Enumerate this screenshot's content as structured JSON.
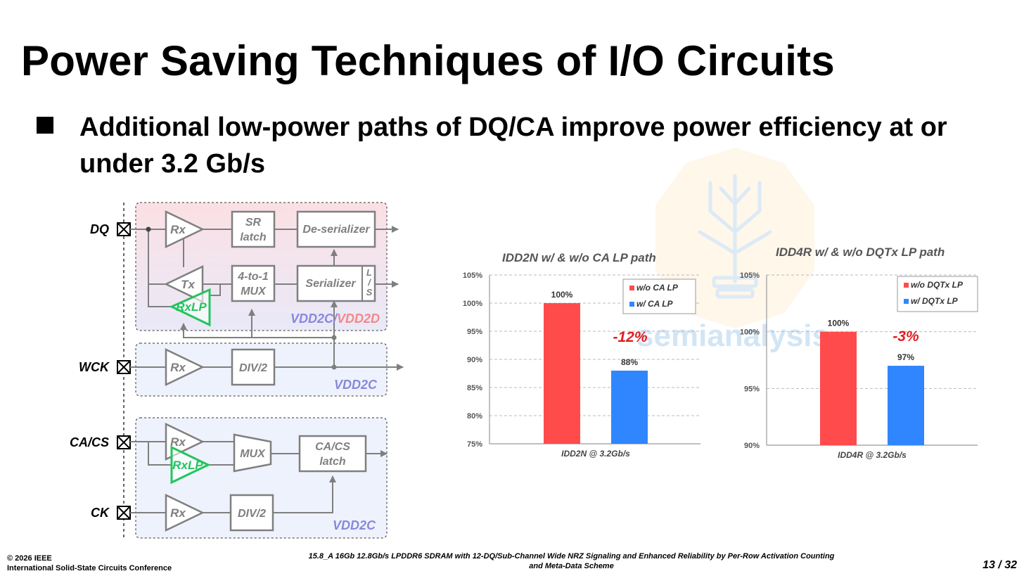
{
  "slide": {
    "title": "Power Saving Techniques of I/O Circuits",
    "bullet": "Additional low-power paths of DQ/CA improve power efficiency at or under 3.2 Gb/s"
  },
  "watermark": {
    "text": "semianalysis"
  },
  "circuit": {
    "pins": {
      "dq": "DQ",
      "wck": "WCK",
      "cacs": "CA/CS",
      "ck": "CK"
    },
    "blocks": {
      "rx": "Rx",
      "tx": "Tx",
      "rxlp": "RxLP",
      "sr_latch": [
        "SR",
        "latch"
      ],
      "mux4": [
        "4-to-1",
        "MUX"
      ],
      "deserializer": "De-serializer",
      "serializer": "Serializer",
      "ls": [
        "L",
        "/",
        "S"
      ],
      "div2": "DIV/2",
      "mux": "MUX",
      "cacs_latch": [
        "CA/CS",
        "latch"
      ]
    },
    "domains": {
      "vdd2c": "VDD2C",
      "sep": "/",
      "vdd2d": "VDD2D"
    },
    "colors": {
      "dq_box": "#fbe0e4",
      "dq_box_bottom": "#e9e9f8",
      "clock_box": "#eef2fc",
      "block_stroke": "#7f7f7f",
      "lp_green": "#22c55e",
      "vdd2c": "#8888dd",
      "vdd2d": "#f08a8a"
    }
  },
  "chart_data": [
    {
      "type": "bar",
      "title": "IDD2N w/ & w/o CA LP path",
      "categories": [
        "IDD2N @ 3.2Gb/s"
      ],
      "series": [
        {
          "name": "w/o CA LP",
          "values": [
            100
          ],
          "color": "#ff4b4b"
        },
        {
          "name": "w/ CA LP",
          "values": [
            88
          ],
          "color": "#2f86ff"
        }
      ],
      "data_labels": [
        "100%",
        "88%"
      ],
      "annotation": "-12%",
      "ylim": [
        75,
        105
      ],
      "yticks": [
        "75%",
        "80%",
        "85%",
        "90%",
        "95%",
        "100%",
        "105%"
      ],
      "grid": true,
      "legend": "top-right"
    },
    {
      "type": "bar",
      "title": "IDD4R w/ & w/o DQTx LP path",
      "categories": [
        "IDD4R @ 3.2Gb/s"
      ],
      "series": [
        {
          "name": "w/o DQTx LP",
          "values": [
            100
          ],
          "color": "#ff4b4b"
        },
        {
          "name": "w/ DQTx LP",
          "values": [
            97
          ],
          "color": "#2f86ff"
        }
      ],
      "data_labels": [
        "100%",
        "97%"
      ],
      "annotation": "-3%",
      "ylim": [
        90,
        105
      ],
      "yticks": [
        "90%",
        "95%",
        "100%",
        "105%"
      ],
      "grid": true,
      "legend": "top-right"
    }
  ],
  "footer": {
    "copyright": "© 2026 IEEE",
    "conference": "International Solid-State Circuits Conference",
    "paper_line1": "15.8_A 16Gb 12.8Gb/s LPDDR6 SDRAM with 12-DQ/Sub-Channel Wide NRZ Signaling and Enhanced Reliability by Per-Row Activation Counting",
    "paper_line2": "and Meta-Data Scheme",
    "page": "13 / 32"
  }
}
